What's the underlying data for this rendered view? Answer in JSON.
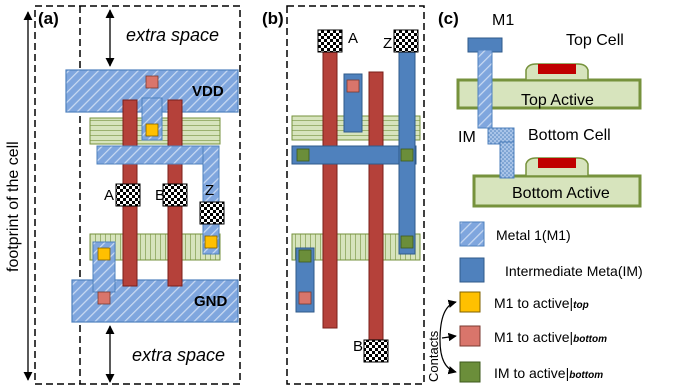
{
  "panels": {
    "a": "(a)",
    "b": "(b)",
    "c": "(c)"
  },
  "panel_a": {
    "side_label": "footprint of the cell",
    "top_space": "extra space",
    "bottom_space": "extra space",
    "vdd": "VDD",
    "gnd": "GND",
    "pins": {
      "a": "A",
      "b": "B",
      "z": "Z"
    }
  },
  "panel_b": {
    "pins": {
      "a": "A",
      "z": "Z",
      "b": "B"
    }
  },
  "panel_c": {
    "m1": "M1",
    "im": "IM",
    "top_cell": "Top Cell",
    "top_active": "Top Active",
    "bottom_cell": "Bottom Cell",
    "bottom_active": "Bottom Active"
  },
  "legend": {
    "metal1": "Metal 1(M1)",
    "im_metal": "Intermediate Meta(IM)",
    "m1_top_prefix": "M1 to active|",
    "m1_top_sub": "top",
    "m1_bottom_prefix": "M1 to active|",
    "m1_bottom_sub": "bottom",
    "im_bottom_prefix": "IM to active|",
    "im_bottom_sub": "bottom",
    "contacts": "Contacts"
  },
  "colors": {
    "metal1": "#7fa6de",
    "intermediate_metal": "#4f81bd",
    "poly": "#b5413a",
    "active": "#d7e4bd",
    "active_border": "#76923c",
    "contact_top": "#ffc000",
    "contact_bottom": "#d9756b",
    "contact_im": "#6b8e3a",
    "gate_red": "#c00000",
    "via": "#000000"
  }
}
